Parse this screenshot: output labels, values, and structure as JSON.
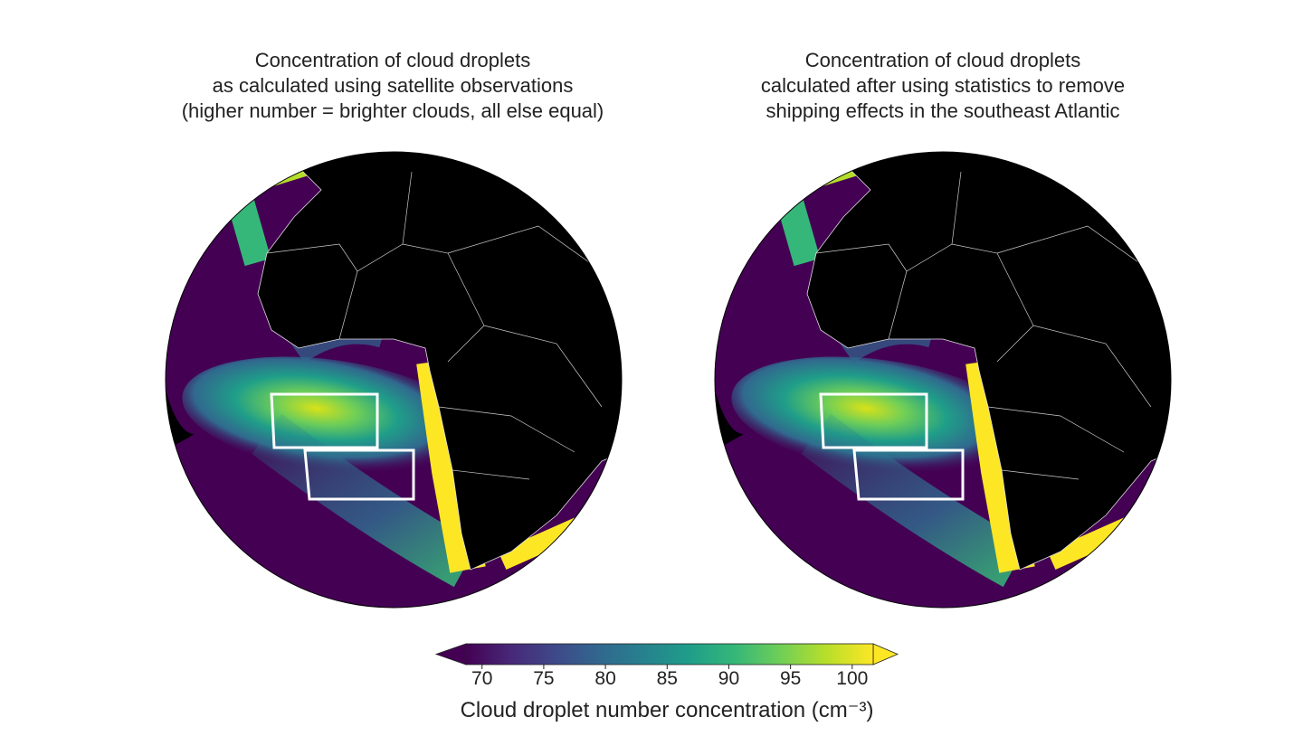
{
  "panels": [
    {
      "title_lines": [
        "Concentration of cloud droplets",
        "as calculated using satellite observations",
        "(higher number = brighter clouds, all else equal)"
      ]
    },
    {
      "title_lines": [
        "Concentration of cloud droplets",
        "calculated after using statistics to remove",
        "shipping effects in the southeast Atlantic"
      ]
    }
  ],
  "colorbar": {
    "label": "Cloud droplet number concentration (cm⁻³)",
    "lim": [
      68.7,
      101.7
    ],
    "ticks": [
      70,
      75,
      80,
      85,
      90,
      95,
      100
    ]
  }
}
